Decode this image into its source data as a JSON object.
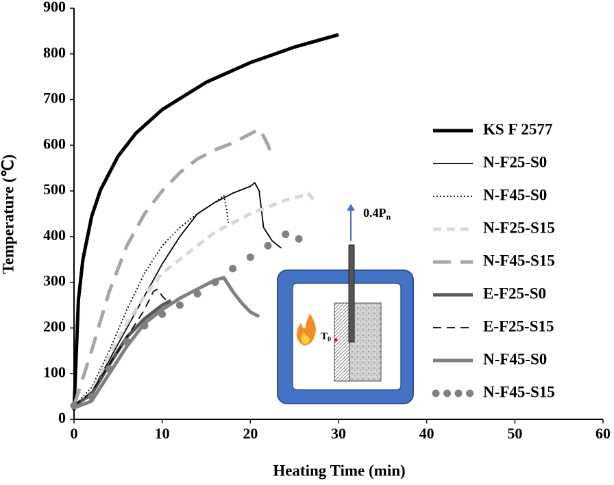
{
  "chart_data": {
    "type": "line",
    "x_label": "Heating Time (min)",
    "y_label": "Temperature (℃)",
    "xlim": [
      0,
      60
    ],
    "xticks": [
      0,
      10,
      20,
      30,
      40,
      50,
      60
    ],
    "ylim": [
      0,
      900
    ],
    "yticks": [
      0,
      100,
      200,
      300,
      400,
      500,
      600,
      700,
      800,
      900
    ],
    "series": [
      {
        "name": "KS F 2577",
        "color": "#000000",
        "style": "solid",
        "width": "heavy",
        "x": [
          0,
          0.5,
          1,
          2,
          3,
          5,
          7,
          10,
          15,
          20,
          25,
          30
        ],
        "values": [
          20,
          261,
          349,
          444,
          502,
          576,
          626,
          678,
          738,
          781,
          815,
          842
        ]
      },
      {
        "name": "N-F25-S0",
        "color": "#000000",
        "style": "solid",
        "width": "thin",
        "x": [
          0,
          2,
          4,
          6,
          8,
          10,
          12,
          14,
          16,
          18,
          20,
          20.5,
          21,
          21.5,
          22.5,
          23.5
        ],
        "values": [
          30,
          60,
          130,
          200,
          270,
          340,
          400,
          450,
          475,
          495,
          510,
          518,
          500,
          420,
          390,
          375
        ]
      },
      {
        "name": "N-F45-S0",
        "color": "#000000",
        "style": "dotted",
        "width": "thin",
        "x": [
          0,
          2,
          4,
          6,
          8,
          10,
          12,
          14,
          16,
          17,
          17.3,
          17.5
        ],
        "values": [
          30,
          70,
          150,
          240,
          320,
          380,
          420,
          450,
          475,
          490,
          460,
          430
        ]
      },
      {
        "name": "N-F25-S15",
        "color": "#d9d9d9",
        "style": "dashed",
        "width": "heavy",
        "x": [
          0,
          2,
          4,
          6,
          8,
          10,
          12,
          14,
          16,
          18,
          20,
          22,
          24,
          26,
          26.5,
          27,
          27.3
        ],
        "values": [
          30,
          60,
          140,
          210,
          270,
          320,
          350,
          380,
          410,
          430,
          450,
          465,
          480,
          490,
          495,
          485,
          470
        ]
      },
      {
        "name": "N-F45-S15",
        "color": "#a6a6a6",
        "style": "long-dash",
        "width": "heavy",
        "x": [
          0,
          1,
          2,
          4,
          6,
          8,
          10,
          12,
          14,
          16,
          18,
          20,
          21,
          21.5,
          22,
          22.5
        ],
        "values": [
          30,
          90,
          150,
          280,
          380,
          450,
          500,
          540,
          570,
          590,
          605,
          625,
          635,
          620,
          600,
          575
        ]
      },
      {
        "name": "E-F25-S0",
        "color": "#595959",
        "style": "solid",
        "width": "heavy",
        "x": [
          0,
          2,
          4,
          6,
          8,
          10,
          11
        ],
        "values": [
          30,
          55,
          120,
          180,
          220,
          250,
          260
        ]
      },
      {
        "name": "E-F25-S15",
        "color": "#000000",
        "style": "dashed",
        "width": "thin",
        "x": [
          0,
          2,
          4,
          6,
          8,
          9,
          9.5,
          10,
          11
        ],
        "values": [
          30,
          60,
          120,
          180,
          240,
          280,
          285,
          270,
          250
        ]
      },
      {
        "name": "N-F45-S0",
        "color": "#808080",
        "style": "solid",
        "width": "heavy",
        "x": [
          0,
          2,
          4,
          6,
          8,
          10,
          12,
          14,
          16,
          17,
          18,
          19,
          20,
          21
        ],
        "values": [
          25,
          40,
          100,
          160,
          210,
          240,
          265,
          285,
          305,
          310,
          280,
          255,
          235,
          225
        ]
      },
      {
        "name": "N-F45-S15",
        "color": "#808080",
        "style": "dots",
        "width": "heavy",
        "x": [
          0,
          2,
          4,
          6,
          8,
          10,
          12,
          14,
          16,
          18,
          20,
          22,
          24,
          25.5
        ],
        "values": [
          30,
          50,
          110,
          170,
          205,
          230,
          250,
          275,
          300,
          330,
          355,
          380,
          405,
          395
        ]
      }
    ],
    "inset": {
      "load_label": {
        "text": "0.4P",
        "subscript": "n"
      },
      "thermocouple_label": {
        "text": "T",
        "subscript": "0"
      }
    }
  }
}
